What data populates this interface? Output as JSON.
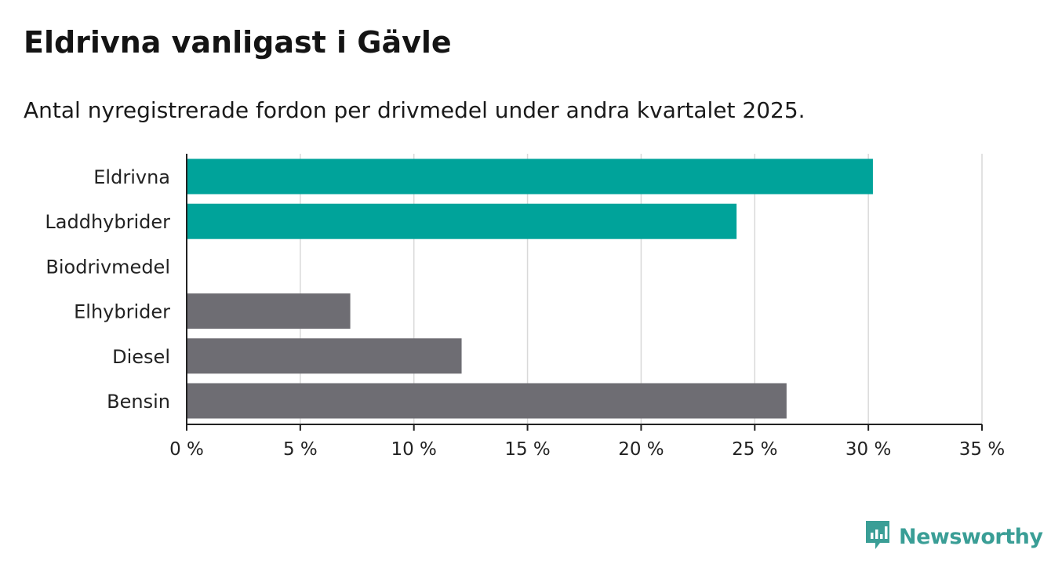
{
  "title": "Eldrivna vanligast i Gävle",
  "subtitle": "Antal nyregistrerade fordon per drivmedel under andra kvartalet 2025.",
  "brand": {
    "name": "Newsworthy",
    "icon": "newsworthy-logo-icon",
    "color": "#3a9e96"
  },
  "colors": {
    "highlight": "#00a39a",
    "default": "#6e6d73",
    "grid": "#d9d9d9",
    "axis": "#222222"
  },
  "chart_data": {
    "type": "bar",
    "orientation": "horizontal",
    "categories": [
      "Eldrivna",
      "Laddhybrider",
      "Biodrivmedel",
      "Elhybrider",
      "Diesel",
      "Bensin"
    ],
    "values": [
      30.2,
      24.2,
      0,
      7.2,
      12.1,
      26.4
    ],
    "highlighted": [
      true,
      true,
      false,
      false,
      false,
      false
    ],
    "unit": "%",
    "xlim": [
      0,
      35
    ],
    "xticks": [
      0,
      5,
      10,
      15,
      20,
      25,
      30,
      35
    ],
    "xtick_labels": [
      "0 %",
      "5 %",
      "10 %",
      "15 %",
      "20 %",
      "25 %",
      "30 %",
      "35 %"
    ],
    "grid": true
  }
}
